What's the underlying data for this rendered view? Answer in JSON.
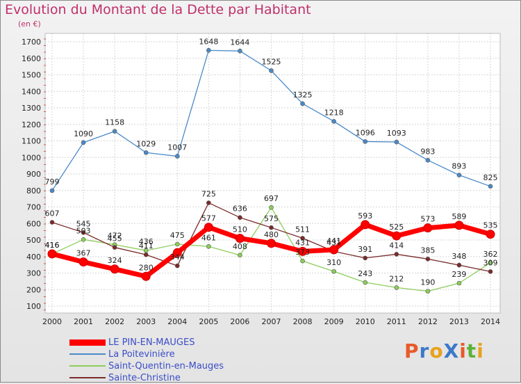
{
  "title": "Evolution du Montant de la Dette par Habitant",
  "subtitle": "(en €)",
  "logo": {
    "text": "ProXiti",
    "colors": [
      "#e85a2a",
      "#3d79c9",
      "#e8a21d",
      "#3d79c9",
      "#e85a2a",
      "#5db13a",
      "#e8a21d"
    ]
  },
  "chart_data": {
    "type": "line",
    "x": [
      "2000",
      "2001",
      "2002",
      "2003",
      "2004",
      "2005",
      "2006",
      "2007",
      "2008",
      "2009",
      "2010",
      "2011",
      "2012",
      "2013",
      "2014"
    ],
    "y_ticks": [
      "100",
      "200",
      "300",
      "400",
      "500",
      "600",
      "700",
      "800",
      "900",
      "1000",
      "1100",
      "1200",
      "1300",
      "1400",
      "1500",
      "1600",
      "1700"
    ],
    "ylim": [
      100,
      1700
    ],
    "grid": true,
    "legend_position": "bottom-left",
    "series": [
      {
        "name": "LE PIN-EN-MAUGES",
        "color": "#ff0000",
        "values": [
          416,
          367,
          324,
          280,
          423,
          577,
          510,
          480,
          431,
          441,
          593,
          525,
          573,
          589,
          535
        ],
        "labels": [
          "416",
          "367",
          "324",
          "280",
          "",
          "577",
          "510",
          "480",
          "431",
          "441",
          "593",
          "525",
          "573",
          "589",
          "535"
        ]
      },
      {
        "name": "La Poitevinière",
        "color": "#4a8ac8",
        "values": [
          799,
          1090,
          1158,
          1029,
          1007,
          1648,
          1644,
          1525,
          1325,
          1218,
          1096,
          1093,
          983,
          893,
          825
        ],
        "labels": [
          "799",
          "1090",
          "1158",
          "1029",
          "1007",
          "1648",
          "1644",
          "1525",
          "1325",
          "1218",
          "1096",
          "1093",
          "983",
          "893",
          "825"
        ]
      },
      {
        "name": "Saint-Quentin-en-Mauges",
        "color": "#8ccd5a",
        "values": [
          416,
          503,
          472,
          436,
          475,
          461,
          408,
          697,
          373,
          310,
          243,
          212,
          190,
          239,
          362
        ],
        "labels": [
          "416",
          "503",
          "472",
          "436",
          "475",
          "461",
          "408",
          "697",
          "373",
          "310",
          "243",
          "212",
          "190",
          "239",
          "362"
        ]
      },
      {
        "name": "Sainte-Christine",
        "color": "#7a2a2a",
        "values": [
          607,
          545,
          455,
          411,
          344,
          725,
          636,
          575,
          511,
          431,
          391,
          414,
          385,
          348,
          309
        ],
        "labels": [
          "607",
          "545",
          "455",
          "411",
          "344",
          "725",
          "636",
          "575",
          "511",
          "431",
          "391",
          "414",
          "385",
          "348",
          "309"
        ]
      }
    ]
  }
}
